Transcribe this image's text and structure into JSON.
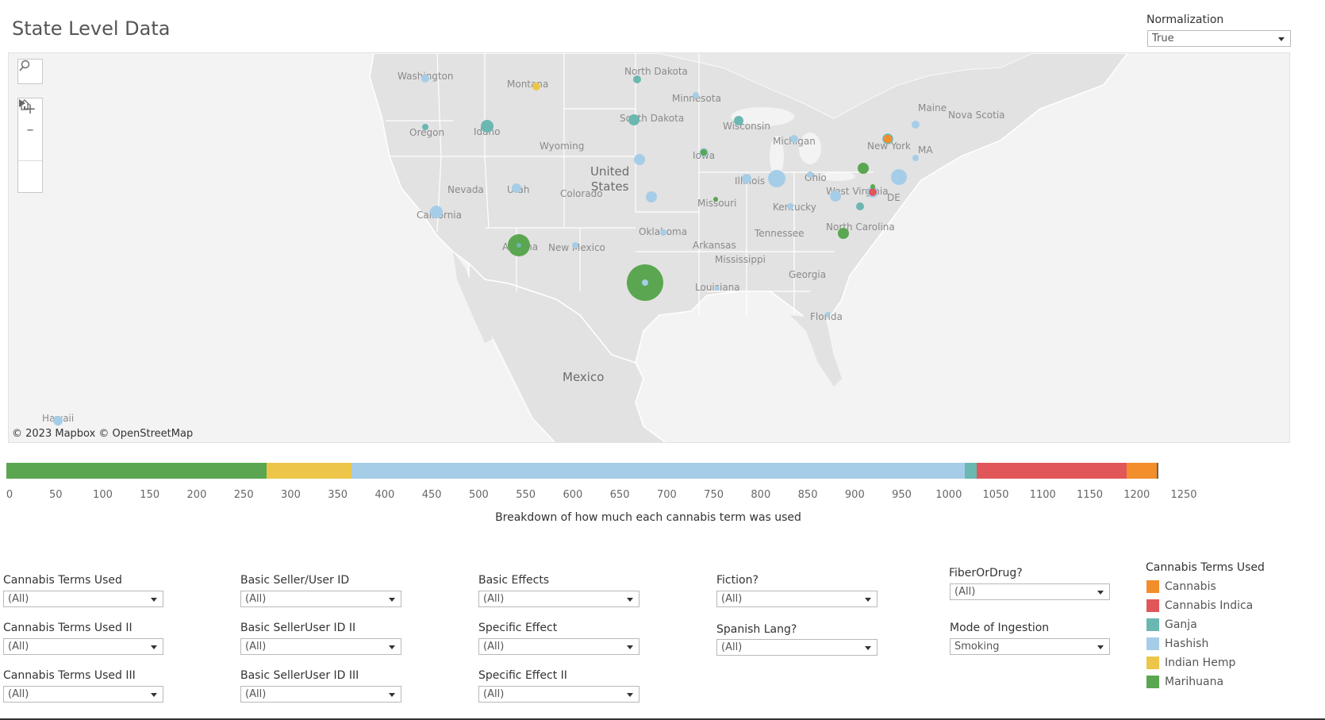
{
  "header": {
    "title": "State Level Data"
  },
  "normalization": {
    "label": "Normalization",
    "value": "True"
  },
  "map": {
    "country_labels": [
      "United States",
      "Mexico",
      "Nova Scotia"
    ],
    "state_labels": [
      "Washington",
      "Montana",
      "North Dakota",
      "Minnesota",
      "South Dakota",
      "Oregon",
      "Idaho",
      "Wyoming",
      "Wisconsin",
      "Michigan",
      "New York",
      "Maine",
      "MA",
      "Iowa",
      "Nevada",
      "Utah",
      "Colorado",
      "Illinois",
      "Ohio",
      "West Virginia",
      "DE",
      "California",
      "Missouri",
      "Kentucky",
      "Oklahoma",
      "Tennessee",
      "North Carolina",
      "Arkansas",
      "Arizona",
      "New Mexico",
      "Mississippi",
      "Georgia",
      "Louisiana",
      "Florida",
      "Hawaii"
    ],
    "credit": "© 2023 Mapbox  © OpenStreetMap"
  },
  "chart_data": {
    "type": "bar",
    "orientation": "horizontal-stacked",
    "title": "",
    "xlabel": "Breakdown of how much each cannabis term was used",
    "xlim": [
      0,
      1285
    ],
    "ticks": [
      0,
      50,
      100,
      150,
      200,
      250,
      300,
      350,
      400,
      450,
      500,
      550,
      600,
      650,
      700,
      750,
      800,
      850,
      900,
      950,
      1000,
      1050,
      1100,
      1150,
      1200,
      1250
    ],
    "series": [
      {
        "name": "Marihuana",
        "value": 277,
        "color": "#5ba650"
      },
      {
        "name": "Indian Hemp",
        "value": 90,
        "color": "#edc549"
      },
      {
        "name": "Hashish",
        "value": 653,
        "color": "#a6cde7"
      },
      {
        "name": "Ganja",
        "value": 12,
        "color": "#6bb7b1"
      },
      {
        "name": "Cannabis Indica",
        "value": 160,
        "color": "#e15759"
      },
      {
        "name": "Cannabis",
        "value": 32,
        "color": "#f28e2b"
      }
    ]
  },
  "filters": [
    {
      "label": "Cannabis Terms Used",
      "value": "(All)"
    },
    {
      "label": "Cannabis Terms Used II",
      "value": "(All)"
    },
    {
      "label": "Cannabis Terms Used III",
      "value": "(All)"
    },
    {
      "label": "Basic Seller/User ID",
      "value": "(All)"
    },
    {
      "label": "Basic SellerUser ID II",
      "value": "(All)"
    },
    {
      "label": "Basic SellerUser ID III",
      "value": "(All)"
    },
    {
      "label": "Basic Effects",
      "value": "(All)"
    },
    {
      "label": "Specific Effect",
      "value": "(All)"
    },
    {
      "label": "Specific Effect II",
      "value": "(All)"
    },
    {
      "label": "Fiction?",
      "value": "(All)"
    },
    {
      "label": "Spanish Lang?",
      "value": "(All)"
    },
    {
      "label": "FiberOrDrug?",
      "value": "(All)"
    },
    {
      "label": "Mode of Ingestion",
      "value": "Smoking"
    }
  ],
  "legend": {
    "title": "Cannabis Terms Used",
    "items": [
      {
        "label": "Cannabis",
        "color": "#f28e2b"
      },
      {
        "label": "Cannabis Indica",
        "color": "#e15759"
      },
      {
        "label": "Ganja",
        "color": "#6bb7b1"
      },
      {
        "label": "Hashish",
        "color": "#a6cde7"
      },
      {
        "label": "Indian Hemp",
        "color": "#edc549"
      },
      {
        "label": "Marihuana",
        "color": "#5ba650"
      }
    ]
  },
  "icons": [
    "search-icon",
    "zoom-in-icon",
    "zoom-out-icon",
    "home-icon",
    "play-icon",
    "chevron-down-icon"
  ]
}
